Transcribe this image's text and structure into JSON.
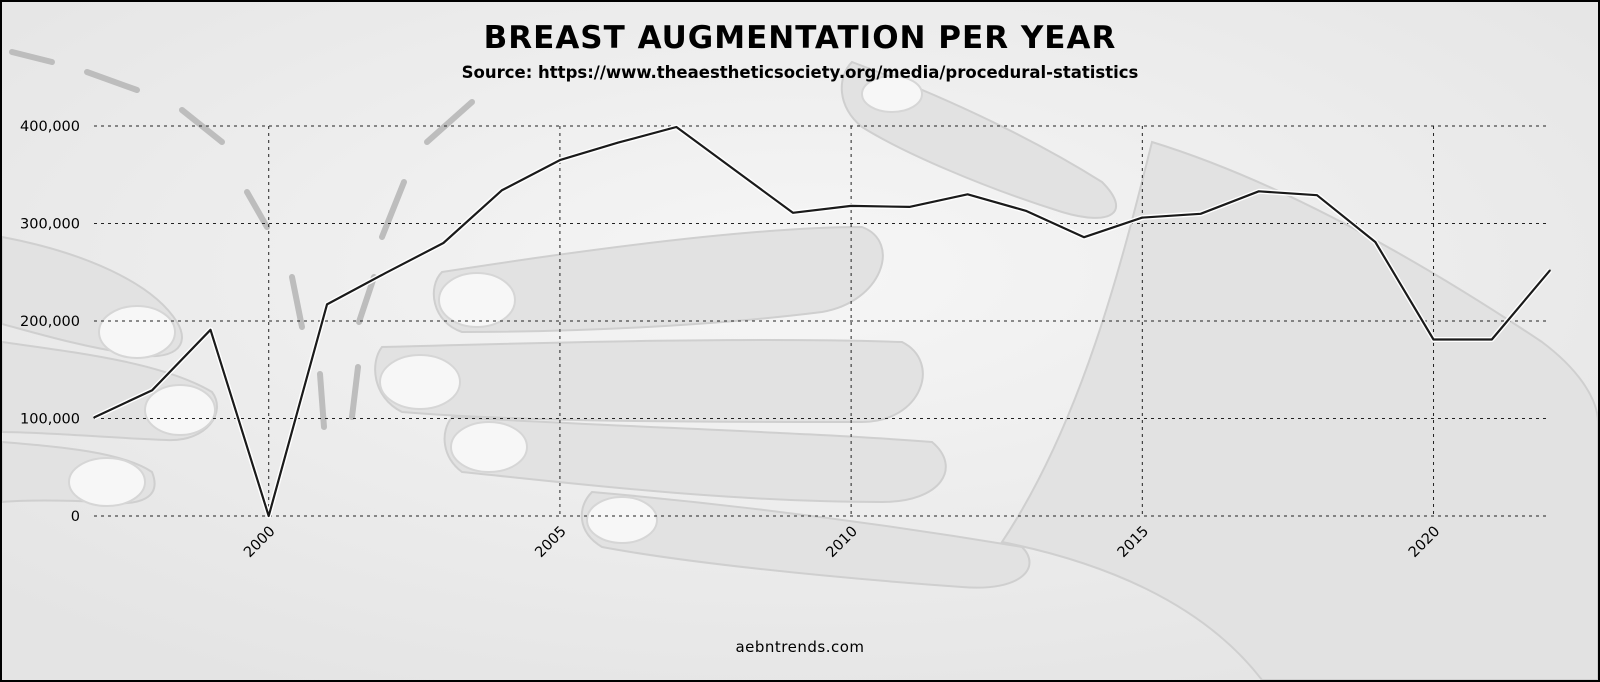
{
  "chart_data": {
    "type": "line",
    "title": "BREAST AUGMENTATION PER YEAR",
    "subtitle": "Source: https://www.theaestheticsociety.org/media/procedural-statistics",
    "footer": "aebntrends.com",
    "xlabel": "",
    "ylabel": "",
    "x": [
      1997,
      1998,
      1999,
      2000,
      2001,
      2002,
      2003,
      2004,
      2005,
      2006,
      2007,
      2008,
      2009,
      2010,
      2011,
      2012,
      2013,
      2014,
      2015,
      2016,
      2017,
      2018,
      2019,
      2020,
      2021,
      2022
    ],
    "series": [
      {
        "values": [
          101000,
          129000,
          191000,
          0,
          217000,
          249000,
          280000,
          334000,
          365000,
          383000,
          399000,
          355000,
          311000,
          318000,
          317000,
          330000,
          313000,
          286000,
          306000,
          310000,
          333000,
          329000,
          281000,
          181000,
          181000,
          252000
        ],
        "color": "#1a1a1a"
      }
    ],
    "xticks": [
      2000,
      2005,
      2010,
      2015,
      2020
    ],
    "xtick_labels": [
      "2000",
      "2005",
      "2010",
      "2015",
      "2020"
    ],
    "yticks": [
      0,
      100000,
      200000,
      300000,
      400000
    ],
    "ytick_labels": [
      "0",
      "100,000",
      "200,000",
      "300,000",
      "400,000"
    ],
    "xlim": [
      1997,
      2022
    ],
    "ylim": [
      0,
      400000
    ],
    "grid": true,
    "grid_style": "dotted",
    "legend": "none",
    "background": "grayscale photo of hands"
  }
}
